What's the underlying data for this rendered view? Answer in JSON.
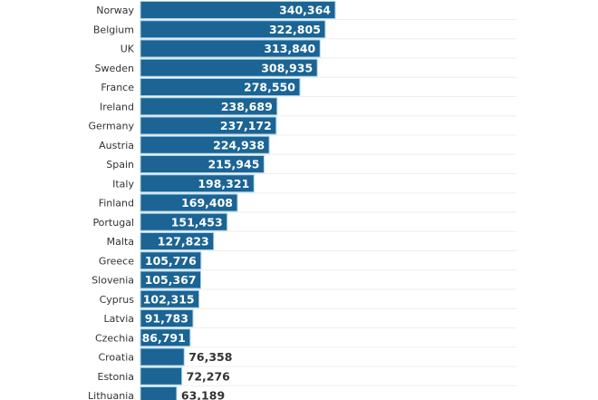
{
  "chart_data": {
    "type": "bar",
    "orientation": "horizontal",
    "categories": [
      "Norway",
      "Belgium",
      "UK",
      "Sweden",
      "France",
      "Ireland",
      "Germany",
      "Austria",
      "Spain",
      "Italy",
      "Finland",
      "Portugal",
      "Malta",
      "Greece",
      "Slovenia",
      "Cyprus",
      "Latvia",
      "Czechia",
      "Croatia",
      "Estonia",
      "Lithuania"
    ],
    "values": [
      340364,
      322805,
      313840,
      308935,
      278550,
      238689,
      237172,
      224938,
      215945,
      198321,
      169408,
      151453,
      127823,
      105776,
      105367,
      102315,
      91783,
      86791,
      76358,
      72276,
      63189
    ],
    "value_labels": [
      "340,364",
      "322,805",
      "313,840",
      "308,935",
      "278,550",
      "238,689",
      "237,172",
      "224,938",
      "215,945",
      "198,321",
      "169,408",
      "151,453",
      "127,823",
      "105,776",
      "105,367",
      "102,315",
      "91,783",
      "86,791",
      "76,358",
      "72,276",
      "63,189"
    ],
    "title": "",
    "xlabel": "",
    "ylabel": "",
    "grid": true,
    "colors": {
      "bar": "#1b6494",
      "bar_outline": "#a9d3ee",
      "label_inside": "#ffffff",
      "label_outside": "#333333",
      "grid": "#eeeeee"
    }
  }
}
